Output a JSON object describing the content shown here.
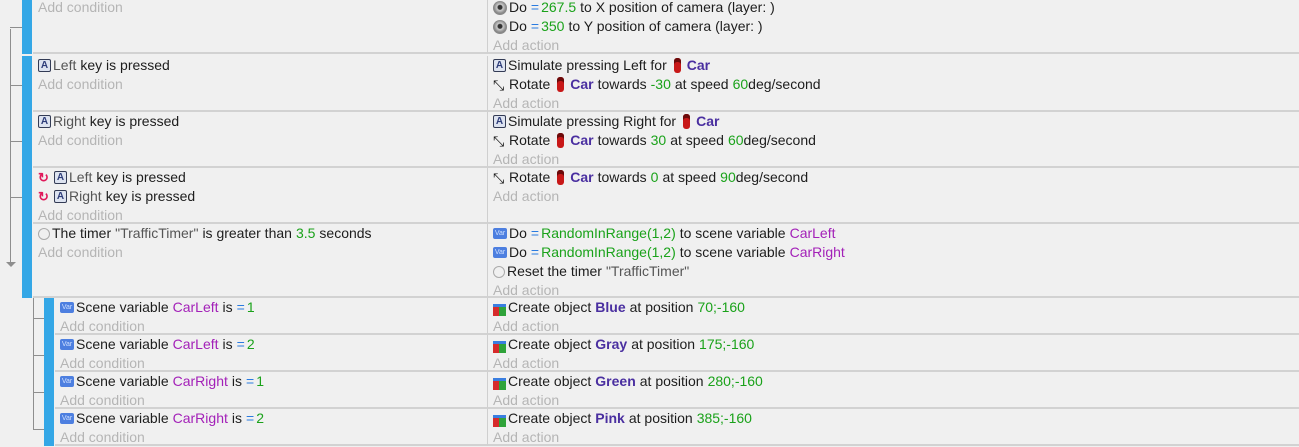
{
  "labels": {
    "add_condition": "Add condition",
    "add_action": "Add action"
  },
  "colors": {
    "event_bar": "#34a7e6",
    "number": "#1aa21a",
    "variable": "#a321b8",
    "object": "#4a2fa0"
  },
  "events": [
    {
      "level": 0,
      "conditions": [],
      "actions": [
        {
          "icon": "camera-icon",
          "parts": [
            {
              "t": "Do"
            },
            {
              "t": "=",
              "s": "op"
            },
            {
              "t": "267.5",
              "s": "num"
            },
            {
              "t": "to X position of camera"
            },
            {
              "t": "(layer: )"
            }
          ]
        },
        {
          "icon": "camera-icon",
          "parts": [
            {
              "t": "Do"
            },
            {
              "t": "=",
              "s": "op"
            },
            {
              "t": "350",
              "s": "num"
            },
            {
              "t": "to Y position of camera"
            },
            {
              "t": "(layer: )"
            }
          ]
        }
      ]
    },
    {
      "level": 0,
      "conditions": [
        {
          "icon": "keyboard-icon",
          "parts": [
            {
              "t": "Left",
              "s": "param"
            },
            {
              "t": "key is pressed"
            }
          ]
        }
      ],
      "actions": [
        {
          "icon": "keyboard-icon",
          "parts": [
            {
              "t": "Simulate pressing Left for"
            },
            {
              "icon": "car-icon"
            },
            {
              "t": "Car",
              "s": "obj"
            }
          ]
        },
        {
          "icon": "rotate-icon",
          "parts": [
            {
              "t": "Rotate"
            },
            {
              "icon": "car-icon"
            },
            {
              "t": "Car",
              "s": "obj"
            },
            {
              "t": "towards"
            },
            {
              "t": "-30",
              "s": "num"
            },
            {
              "t": "at speed"
            },
            {
              "t": "60",
              "s": "num",
              "tight": true
            },
            {
              "t": "deg/second"
            }
          ]
        }
      ]
    },
    {
      "level": 0,
      "conditions": [
        {
          "icon": "keyboard-icon",
          "parts": [
            {
              "t": "Right",
              "s": "param"
            },
            {
              "t": "key is pressed"
            }
          ]
        }
      ],
      "actions": [
        {
          "icon": "keyboard-icon",
          "parts": [
            {
              "t": "Simulate pressing Right for"
            },
            {
              "icon": "car-icon"
            },
            {
              "t": "Car",
              "s": "obj"
            }
          ]
        },
        {
          "icon": "rotate-icon",
          "parts": [
            {
              "t": "Rotate"
            },
            {
              "icon": "car-icon"
            },
            {
              "t": "Car",
              "s": "obj"
            },
            {
              "t": "towards"
            },
            {
              "t": "30",
              "s": "num"
            },
            {
              "t": "at speed"
            },
            {
              "t": "60",
              "s": "num",
              "tight": true
            },
            {
              "t": "deg/second"
            }
          ]
        }
      ]
    },
    {
      "level": 0,
      "conditions": [
        {
          "icon": "invert-icon",
          "icon2": "keyboard-icon",
          "parts": [
            {
              "t": "Left",
              "s": "param"
            },
            {
              "t": "key is pressed"
            }
          ]
        },
        {
          "icon": "invert-icon",
          "icon2": "keyboard-icon",
          "parts": [
            {
              "t": "Right",
              "s": "param"
            },
            {
              "t": "key is pressed"
            }
          ]
        }
      ],
      "actions": [
        {
          "icon": "rotate-icon",
          "parts": [
            {
              "t": "Rotate"
            },
            {
              "icon": "car-icon"
            },
            {
              "t": "Car",
              "s": "obj"
            },
            {
              "t": "towards"
            },
            {
              "t": "0",
              "s": "num"
            },
            {
              "t": "at speed"
            },
            {
              "t": "90",
              "s": "num",
              "tight": true
            },
            {
              "t": "deg/second"
            }
          ]
        }
      ]
    },
    {
      "level": 0,
      "conditions": [
        {
          "icon": "timer-icon",
          "parts": [
            {
              "t": "The timer"
            },
            {
              "t": "\"TrafficTimer\"",
              "s": "param"
            },
            {
              "t": "is greater than"
            },
            {
              "t": "3.5",
              "s": "num"
            },
            {
              "t": "seconds"
            }
          ]
        }
      ],
      "actions": [
        {
          "icon": "variable-icon",
          "parts": [
            {
              "t": "Do"
            },
            {
              "t": "=",
              "s": "op"
            },
            {
              "t": "RandomInRange(1,2)",
              "s": "num"
            },
            {
              "t": "to scene variable"
            },
            {
              "t": "CarLeft",
              "s": "var"
            }
          ]
        },
        {
          "icon": "variable-icon",
          "parts": [
            {
              "t": "Do"
            },
            {
              "t": "=",
              "s": "op"
            },
            {
              "t": "RandomInRange(1,2)",
              "s": "num"
            },
            {
              "t": "to scene variable"
            },
            {
              "t": "CarRight",
              "s": "var"
            }
          ]
        },
        {
          "icon": "timer-icon",
          "parts": [
            {
              "t": "Reset the timer"
            },
            {
              "t": "\"TrafficTimer\"",
              "s": "param"
            }
          ]
        }
      ]
    },
    {
      "level": 1,
      "conditions": [
        {
          "icon": "variable-icon",
          "parts": [
            {
              "t": "Scene variable"
            },
            {
              "t": "CarLeft",
              "s": "var"
            },
            {
              "t": "is"
            },
            {
              "t": "=",
              "s": "op"
            },
            {
              "t": "1",
              "s": "num"
            }
          ]
        }
      ],
      "actions": [
        {
          "icon": "create-object-icon",
          "parts": [
            {
              "t": "Create object"
            },
            {
              "t": "Blue",
              "s": "obj"
            },
            {
              "t": "at position"
            },
            {
              "t": "70;-160",
              "s": "num"
            }
          ]
        }
      ]
    },
    {
      "level": 1,
      "conditions": [
        {
          "icon": "variable-icon",
          "parts": [
            {
              "t": "Scene variable"
            },
            {
              "t": "CarLeft",
              "s": "var"
            },
            {
              "t": "is"
            },
            {
              "t": "=",
              "s": "op"
            },
            {
              "t": "2",
              "s": "num"
            }
          ]
        }
      ],
      "actions": [
        {
          "icon": "create-object-icon",
          "parts": [
            {
              "t": "Create object"
            },
            {
              "t": "Gray",
              "s": "obj"
            },
            {
              "t": "at position"
            },
            {
              "t": "175;-160",
              "s": "num"
            }
          ]
        }
      ]
    },
    {
      "level": 1,
      "conditions": [
        {
          "icon": "variable-icon",
          "parts": [
            {
              "t": "Scene variable"
            },
            {
              "t": "CarRight",
              "s": "var"
            },
            {
              "t": "is"
            },
            {
              "t": "=",
              "s": "op"
            },
            {
              "t": "1",
              "s": "num"
            }
          ]
        }
      ],
      "actions": [
        {
          "icon": "create-object-icon",
          "parts": [
            {
              "t": "Create object"
            },
            {
              "t": "Green",
              "s": "obj"
            },
            {
              "t": "at position"
            },
            {
              "t": "280;-160",
              "s": "num"
            }
          ]
        }
      ]
    },
    {
      "level": 1,
      "conditions": [
        {
          "icon": "variable-icon",
          "parts": [
            {
              "t": "Scene variable"
            },
            {
              "t": "CarRight",
              "s": "var"
            },
            {
              "t": "is"
            },
            {
              "t": "=",
              "s": "op"
            },
            {
              "t": "2",
              "s": "num"
            }
          ]
        }
      ],
      "actions": [
        {
          "icon": "create-object-icon",
          "parts": [
            {
              "t": "Create object"
            },
            {
              "t": "Pink",
              "s": "obj"
            },
            {
              "t": "at position"
            },
            {
              "t": "385;-160",
              "s": "num"
            }
          ]
        }
      ]
    }
  ]
}
